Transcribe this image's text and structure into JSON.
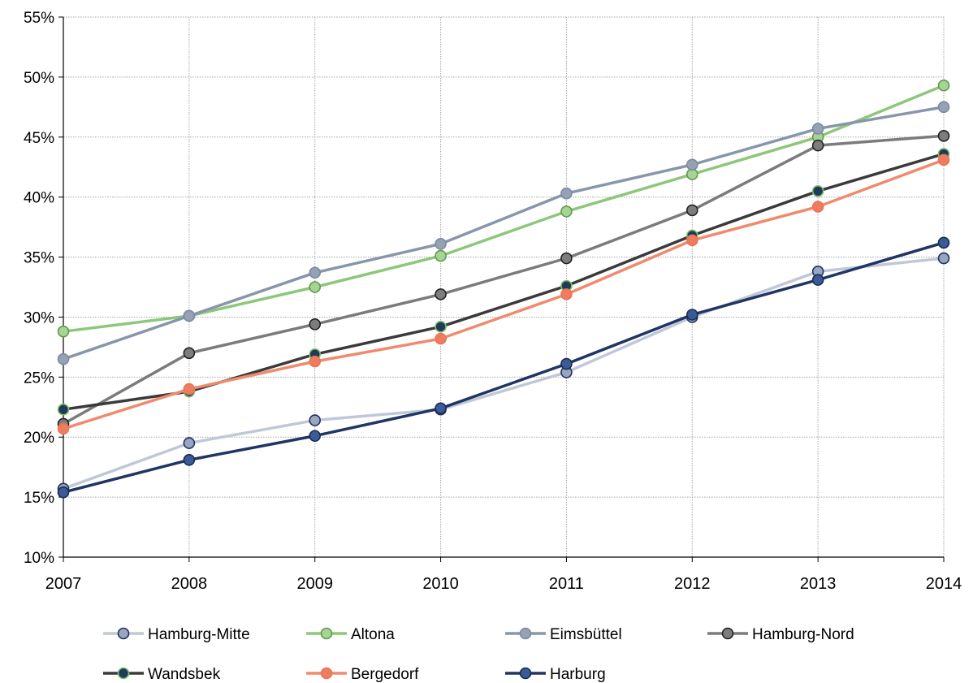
{
  "chart_data": {
    "type": "line",
    "title": "",
    "xlabel": "",
    "ylabel": "",
    "categories": [
      "2007",
      "2008",
      "2009",
      "2010",
      "2011",
      "2012",
      "2013",
      "2014"
    ],
    "yticks": [
      "10%",
      "15%",
      "20%",
      "25%",
      "30%",
      "35%",
      "40%",
      "45%",
      "50%",
      "55%"
    ],
    "ylim": [
      10,
      55
    ],
    "grid": true,
    "legend": "bottom",
    "series": [
      {
        "name": "Hamburg-Mitte",
        "values": [
          15.7,
          19.5,
          21.4,
          22.3,
          25.4,
          30.0,
          33.8,
          34.9
        ],
        "line_color": "#c0c8d8",
        "marker_fill": "#9aa6c0",
        "marker_stroke": "#1f3060"
      },
      {
        "name": "Altona",
        "values": [
          28.8,
          30.1,
          32.5,
          35.1,
          38.8,
          41.9,
          45.0,
          49.3
        ],
        "line_color": "#8dc77b",
        "marker_fill": "#a6d494",
        "marker_stroke": "#5f9a4e"
      },
      {
        "name": "Eimsbüttel",
        "values": [
          26.5,
          30.1,
          33.7,
          36.1,
          40.3,
          42.7,
          45.7,
          47.5
        ],
        "line_color": "#8896aa",
        "marker_fill": "#95a2b5",
        "marker_stroke": "#7c8aa0"
      },
      {
        "name": "Hamburg-Nord",
        "values": [
          21.1,
          27.0,
          29.4,
          31.9,
          34.9,
          38.9,
          44.3,
          45.1
        ],
        "line_color": "#7b7b7b",
        "marker_fill": "#7d7d7d",
        "marker_stroke": "#222222"
      },
      {
        "name": "Wandsbek",
        "values": [
          22.3,
          23.8,
          26.9,
          29.2,
          32.6,
          36.8,
          40.5,
          43.6
        ],
        "line_color": "#3a3a3a",
        "marker_fill": "#1f3a5a",
        "marker_stroke": "#7fc16a"
      },
      {
        "name": "Bergedorf",
        "values": [
          20.7,
          24.0,
          26.3,
          28.2,
          31.9,
          36.4,
          39.2,
          43.1
        ],
        "line_color": "#f08a6e",
        "marker_fill": "#ee7d60",
        "marker_stroke": "#e8755a"
      },
      {
        "name": "Harburg",
        "values": [
          15.4,
          18.1,
          20.1,
          22.4,
          26.1,
          30.2,
          33.1,
          36.2
        ],
        "line_color": "#1f3564",
        "marker_fill": "#3a5a98",
        "marker_stroke": "#1a2c52"
      }
    ]
  }
}
